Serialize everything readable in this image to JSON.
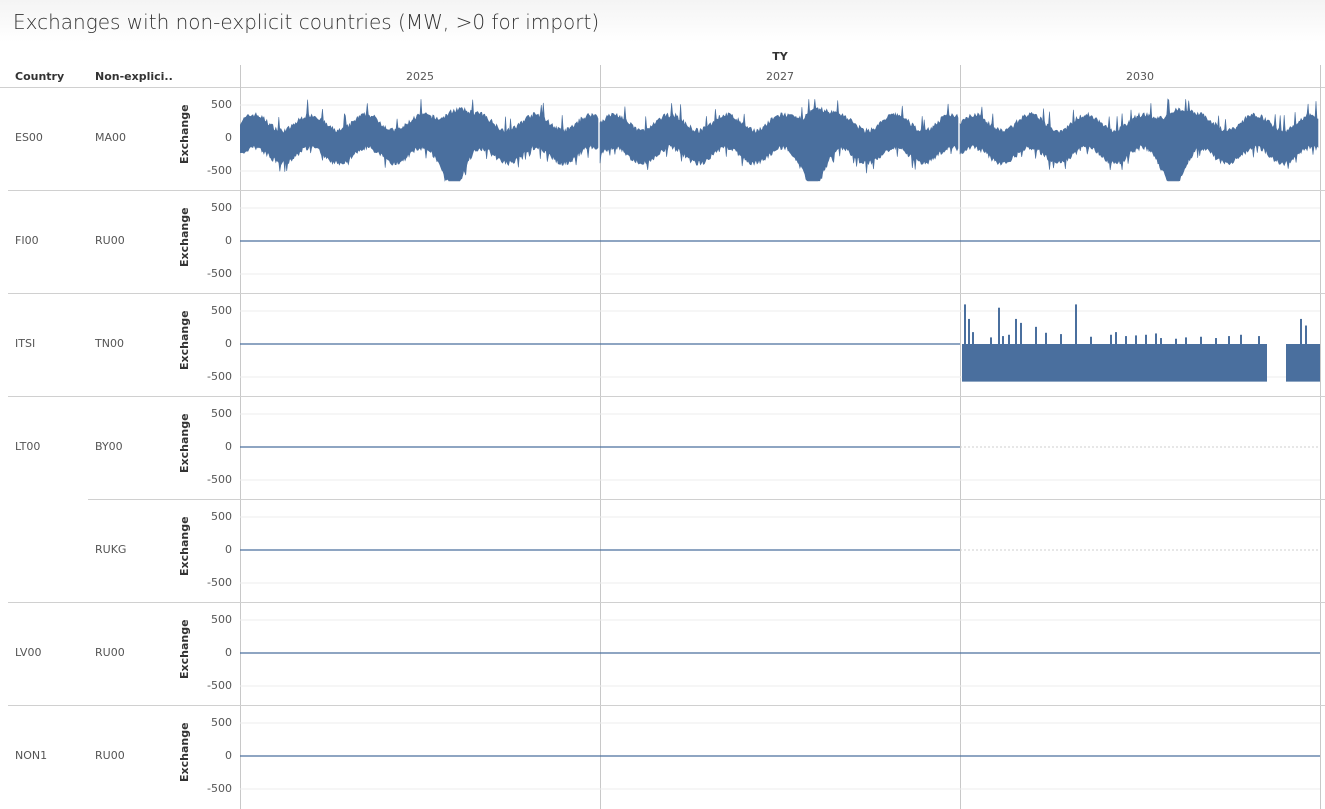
{
  "title": "Exchanges with non-explicit countries (MW, >0 for import)",
  "column_header_top": "TY",
  "column_headers": {
    "country": "Country",
    "non_explicit": "Non-explici.."
  },
  "years": [
    "2025",
    "2027",
    "2030"
  ],
  "series_color": "#4a6f9e",
  "chart_data": {
    "type": "bar",
    "title": "Exchanges with non-explicit countries (MW, >0 for import)",
    "facet_columns": "TY",
    "ylabel": "Exchange",
    "ylim": [
      -650,
      650
    ],
    "yticks": [
      500,
      0,
      -500
    ],
    "rows": [
      {
        "country": "ES00",
        "non_explicit": "MA00",
        "panels": [
          {
            "ty": "2025",
            "range": [
              -650,
              590
            ],
            "pattern": "hourly oscillating exchange between about -400 and +590 MW"
          },
          {
            "ty": "2027",
            "range": [
              -650,
              590
            ],
            "pattern": "hourly oscillating exchange between about -400 and +590 MW"
          },
          {
            "ty": "2030",
            "range": [
              -650,
              590
            ],
            "pattern": "hourly oscillating exchange between about -400 and +590 MW"
          }
        ]
      },
      {
        "country": "FI00",
        "non_explicit": "RU00",
        "panels": [
          {
            "ty": "2025",
            "value": 0
          },
          {
            "ty": "2027",
            "value": 0
          },
          {
            "ty": "2030",
            "value": 0
          }
        ]
      },
      {
        "country": "ITSI",
        "non_explicit": "TN00",
        "panels": [
          {
            "ty": "2025",
            "value": 0
          },
          {
            "ty": "2027",
            "value": 0
          },
          {
            "ty": "2030",
            "range": [
              -600,
              600
            ],
            "pattern": "mostly -600 MW export with sparse import spikes up to 600 MW"
          }
        ]
      },
      {
        "country": "LT00",
        "non_explicit": "BY00",
        "panels": [
          {
            "ty": "2025",
            "value": 0
          },
          {
            "ty": "2027",
            "value": 0
          },
          {
            "ty": "2030",
            "value": null
          }
        ]
      },
      {
        "country": "",
        "non_explicit": "RUKG",
        "panels": [
          {
            "ty": "2025",
            "value": 0
          },
          {
            "ty": "2027",
            "value": 0
          },
          {
            "ty": "2030",
            "value": null
          }
        ]
      },
      {
        "country": "LV00",
        "non_explicit": "RU00",
        "panels": [
          {
            "ty": "2025",
            "value": 0
          },
          {
            "ty": "2027",
            "value": 0
          },
          {
            "ty": "2030",
            "value": 0
          }
        ]
      },
      {
        "country": "NON1",
        "non_explicit": "RU00",
        "panels": [
          {
            "ty": "2025",
            "value": 0
          },
          {
            "ty": "2027",
            "value": 0
          },
          {
            "ty": "2030",
            "value": 0
          }
        ]
      }
    ]
  }
}
